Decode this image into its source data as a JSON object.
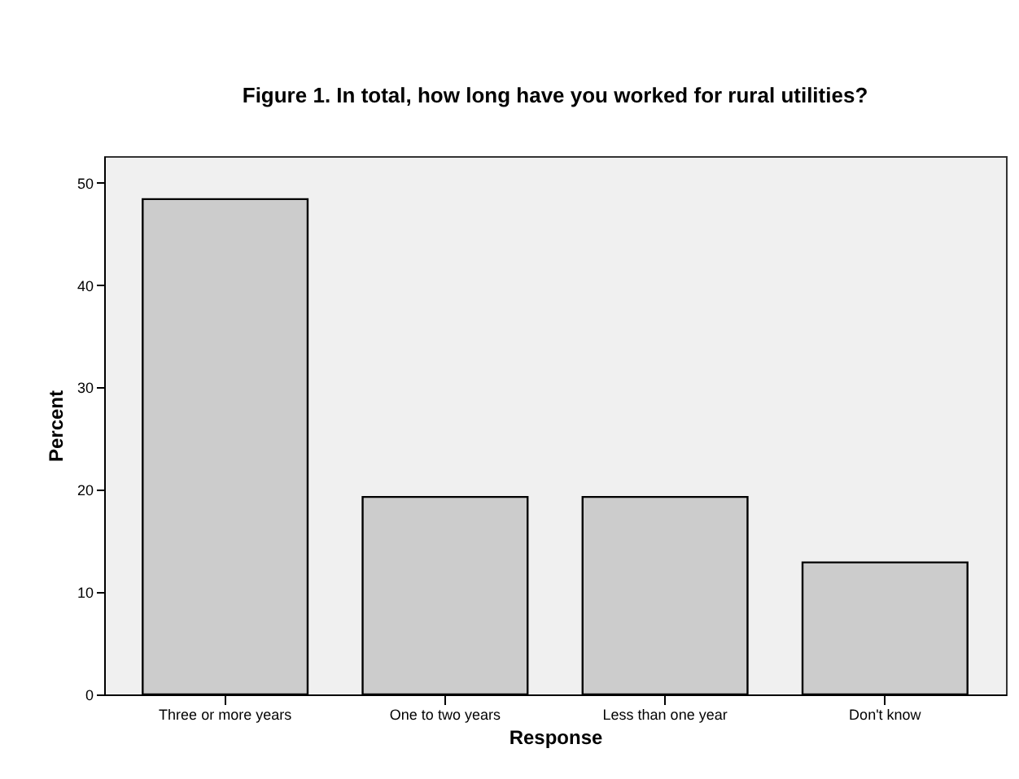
{
  "chart_data": {
    "type": "bar",
    "title": "Figure 1.  In total, how long have you worked for rural utilities?",
    "xlabel": "Response",
    "ylabel": "Percent",
    "categories": [
      "Three or more years",
      "One to two years",
      "Less than one year",
      "Don't know"
    ],
    "values": [
      48.4,
      19.3,
      19.3,
      12.9
    ],
    "color": "#cccccc",
    "ylim": [
      0,
      52.6
    ],
    "yticks": [
      0,
      10,
      20,
      30,
      40,
      50
    ],
    "grid": false
  }
}
